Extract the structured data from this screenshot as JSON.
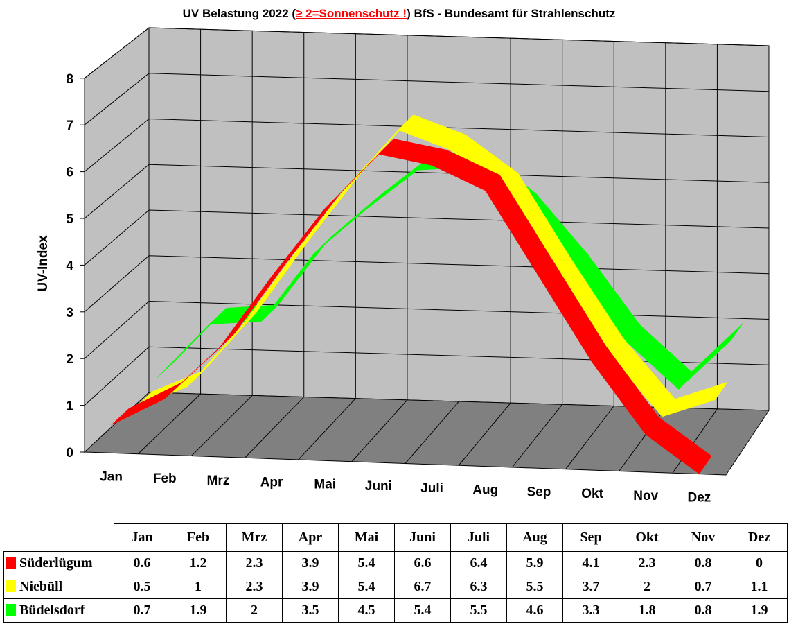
{
  "title": {
    "part1": "UV Belastung 2022 (",
    "warning": "≥ 2=Sonnenschutz !",
    "part2": ") BfS - Bundesamt für Strahlenschutz",
    "warning_color": "#ff0000"
  },
  "chart_data": {
    "type": "3d-ribbon-line",
    "title": "UV Belastung 2022 (≥ 2=Sonnenschutz !) BfS - Bundesamt für Strahlenschutz",
    "ylabel": "UV-Index",
    "xlabel": "",
    "ylim": [
      0,
      8
    ],
    "yticks": [
      "0",
      "1",
      "2",
      "3",
      "4",
      "5",
      "6",
      "7",
      "8"
    ],
    "categories": [
      "Jan",
      "Feb",
      "Mrz",
      "Apr",
      "Mai",
      "Juni",
      "Juli",
      "Aug",
      "Sep",
      "Okt",
      "Nov",
      "Dez"
    ],
    "grid": true,
    "series": [
      {
        "name": "Süderlügum",
        "color": "#ff0000",
        "values": [
          0.6,
          1.2,
          2.3,
          3.9,
          5.4,
          6.6,
          6.4,
          5.9,
          4.1,
          2.3,
          0.8,
          0
        ]
      },
      {
        "name": "Niebüll",
        "color": "#ffff00",
        "values": [
          0.5,
          1,
          2.3,
          3.9,
          5.4,
          6.7,
          6.3,
          5.5,
          3.7,
          2,
          0.7,
          1.1
        ]
      },
      {
        "name": "Büdelsdorf",
        "color": "#00ff00",
        "values": [
          0.7,
          1.9,
          2,
          3.5,
          4.5,
          5.4,
          5.5,
          4.6,
          3.3,
          1.8,
          0.8,
          1.9
        ]
      }
    ]
  },
  "table_values": [
    [
      "0.6",
      "1.2",
      "2.3",
      "3.9",
      "5.4",
      "6.6",
      "6.4",
      "5.9",
      "4.1",
      "2.3",
      "0.8",
      "0"
    ],
    [
      "0.5",
      "1",
      "2.3",
      "3.9",
      "5.4",
      "6.7",
      "6.3",
      "5.5",
      "3.7",
      "2",
      "0.7",
      "1.1"
    ],
    [
      "0.7",
      "1.9",
      "2",
      "3.5",
      "4.5",
      "5.4",
      "5.5",
      "4.6",
      "3.3",
      "1.8",
      "0.8",
      "1.9"
    ]
  ]
}
